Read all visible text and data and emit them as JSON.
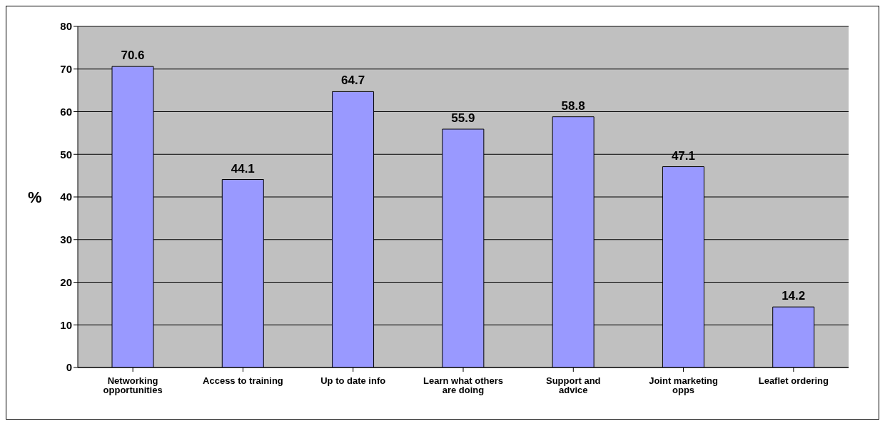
{
  "chart_data": {
    "type": "bar",
    "ylabel": "%",
    "categories": [
      "Networking opportunities",
      "Access to training",
      "Up to date info",
      "Learn what others are doing",
      "Support and advice",
      "Joint marketing opps",
      "Leaflet ordering"
    ],
    "values": [
      70.6,
      44.1,
      64.7,
      55.9,
      58.8,
      47.1,
      14.2
    ],
    "color": "#9999ff",
    "ylim": [
      0,
      80
    ],
    "yticks": [
      0,
      10,
      20,
      30,
      40,
      50,
      60,
      70,
      80
    ],
    "grid": "y",
    "data_labels": true
  }
}
